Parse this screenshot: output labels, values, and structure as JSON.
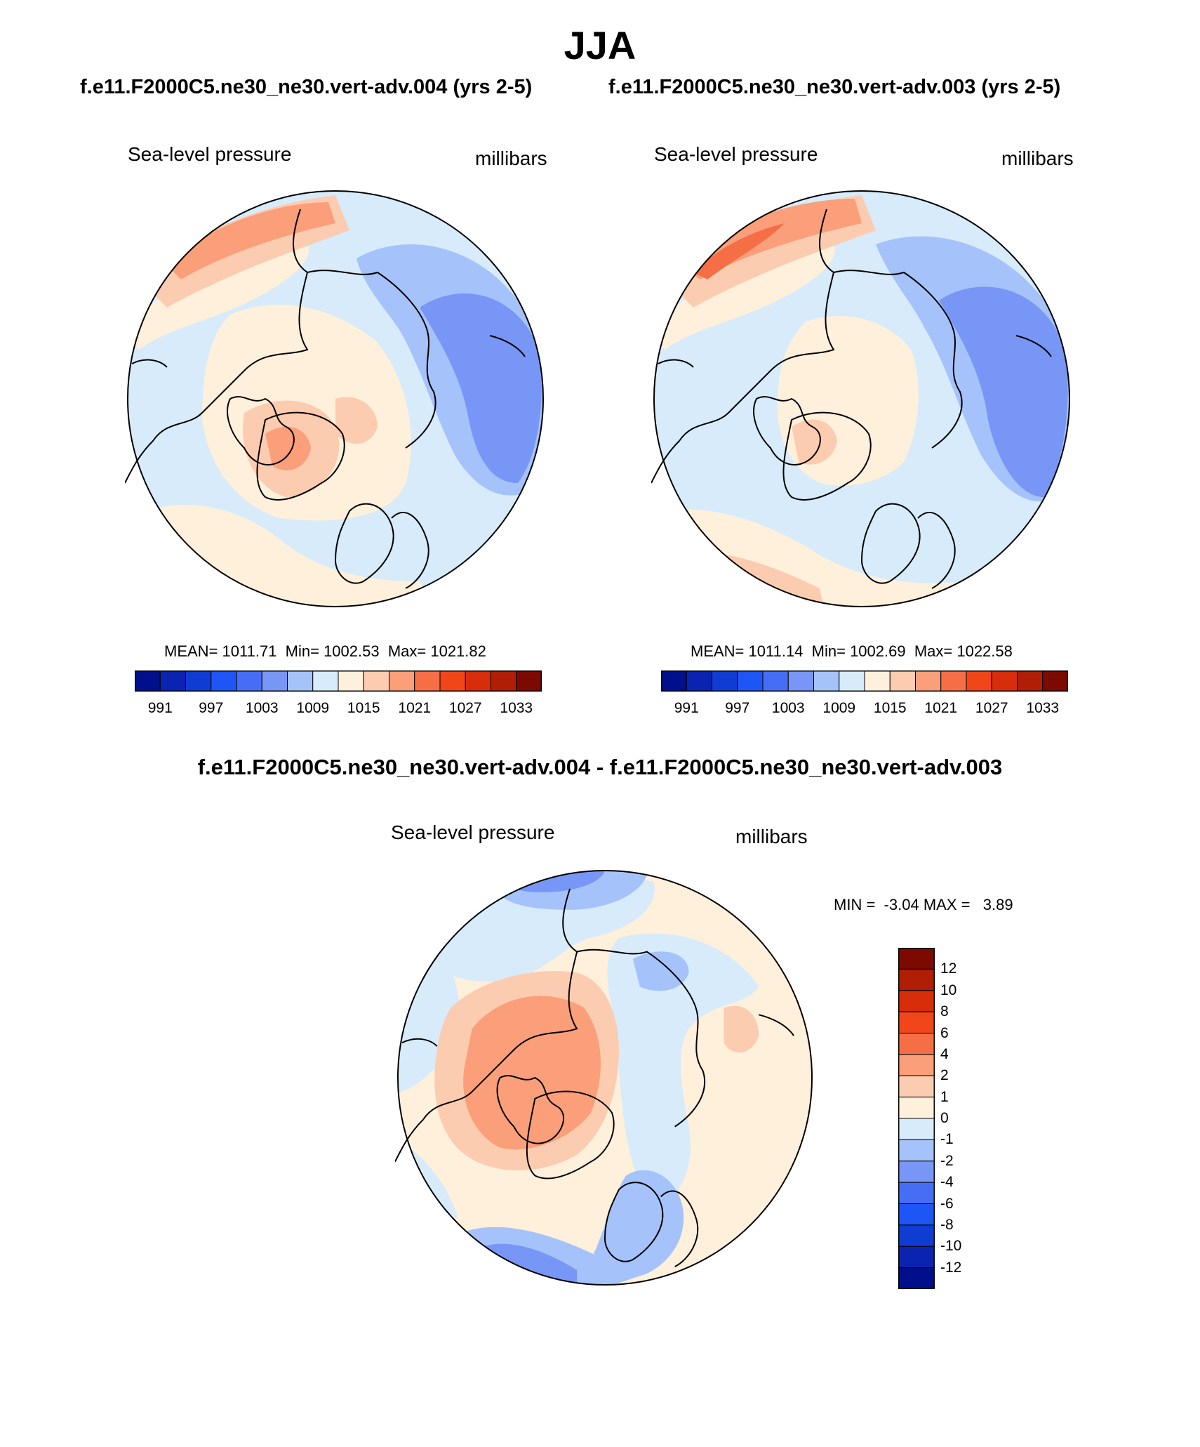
{
  "figure": {
    "season": "JJA",
    "case_a_title": "f.e11.F2000C5.ne30_ne30.vert-adv.004 (yrs 2-5)",
    "case_b_title": "f.e11.F2000C5.ne30_ne30.vert-adv.003 (yrs 2-5)",
    "diff_title": "f.e11.F2000C5.ne30_ne30.vert-adv.004 - f.e11.F2000C5.ne30_ne30.vert-adv.003"
  },
  "panels": {
    "a": {
      "variable": "Sea-level pressure",
      "units": "millibars",
      "mean": "MEAN= 1011.71",
      "min": "Min= 1002.53",
      "max": "Max= 1021.82"
    },
    "b": {
      "variable": "Sea-level pressure",
      "units": "millibars",
      "mean": "MEAN= 1011.14",
      "min": "Min= 1002.69",
      "max": "Max= 1022.58"
    },
    "diff": {
      "variable": "Sea-level pressure",
      "units": "millibars",
      "min_label": "MIN =",
      "min_value": "-3.04",
      "max_label": "MAX =",
      "max_value": "3.89"
    }
  },
  "colors": {
    "abs_scale": [
      "#000f8c",
      "#0a23b0",
      "#0f3cd2",
      "#1e55f5",
      "#466ef5",
      "#7896f5",
      "#a5c3fa",
      "#d7ebfa",
      "#fff0dc",
      "#fcccb0",
      "#fa9f7a",
      "#f56e46",
      "#f04619",
      "#d72d0a",
      "#af1e05",
      "#7d0a00"
    ],
    "diff_scale_top_to_bottom": [
      "#7d0a00",
      "#af1e05",
      "#d72d0a",
      "#f04619",
      "#f56e46",
      "#fa9f7a",
      "#fcccb0",
      "#fff0dc",
      "#d7ebfa",
      "#a5c3fa",
      "#7896f5",
      "#466ef5",
      "#1e55f5",
      "#0f3cd2",
      "#0a23b0",
      "#000f8c"
    ]
  },
  "chart_data": [
    {
      "type": "heatmap",
      "title": "Sea-level pressure",
      "subtitle": "f.e11.F2000C5.ne30_ne30.vert-adv.004 (yrs 2-5)",
      "units": "millibars",
      "projection": "north-polar stereographic",
      "mean": 1011.71,
      "min": 1002.53,
      "max": 1021.82,
      "colorbar_ticks": [
        "991",
        "997",
        "1003",
        "1009",
        "1015",
        "1021",
        "1027",
        "1033"
      ],
      "colorbar_levels": [
        988,
        991,
        994,
        997,
        1000,
        1003,
        1006,
        1009,
        1012,
        1015,
        1018,
        1021,
        1024,
        1027,
        1030,
        1033,
        1036
      ]
    },
    {
      "type": "heatmap",
      "title": "Sea-level pressure",
      "subtitle": "f.e11.F2000C5.ne30_ne30.vert-adv.003 (yrs 2-5)",
      "units": "millibars",
      "projection": "north-polar stereographic",
      "mean": 1011.14,
      "min": 1002.69,
      "max": 1022.58,
      "colorbar_ticks": [
        "991",
        "997",
        "1003",
        "1009",
        "1015",
        "1021",
        "1027",
        "1033"
      ],
      "colorbar_levels": [
        988,
        991,
        994,
        997,
        1000,
        1003,
        1006,
        1009,
        1012,
        1015,
        1018,
        1021,
        1024,
        1027,
        1030,
        1033,
        1036
      ]
    },
    {
      "type": "heatmap",
      "title": "Sea-level pressure",
      "subtitle": "f.e11.F2000C5.ne30_ne30.vert-adv.004 - f.e11.F2000C5.ne30_ne30.vert-adv.003",
      "units": "millibars",
      "projection": "north-polar stereographic",
      "min": -3.04,
      "max": 3.89,
      "colorbar_ticks": [
        "12",
        "10",
        "8",
        "6",
        "4",
        "2",
        "1",
        "0",
        "-1",
        "-2",
        "-4",
        "-6",
        "-8",
        "-10",
        "-12"
      ]
    }
  ]
}
